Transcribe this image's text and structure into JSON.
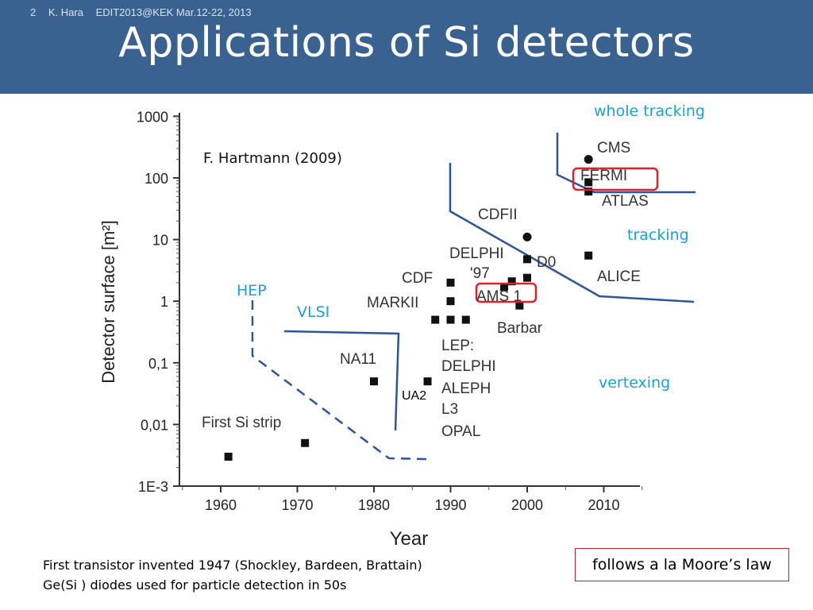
{
  "slide": {
    "number": "2",
    "author": "K. Hara",
    "event": "EDIT2013@KEK Mar.12-22, 2013",
    "title": "Applications of Si detectors"
  },
  "notes": {
    "line1": "First transistor invented 1947 (Shockley, Bardeen, Brattain)",
    "line2": "Ge(Si ) diodes used for particle detection in 50s",
    "moore": "follows a la Moore’s law"
  },
  "colors": {
    "header": "#3a6291",
    "annotation": "#1aa0d6",
    "curve": "#2f5597",
    "highlight": "#e0202a"
  },
  "chart_data": {
    "type": "scatter",
    "xlabel": "Year",
    "ylabel": "Detector surface [m²]",
    "ylog": true,
    "xlim": [
      1953,
      2015
    ],
    "ylim": [
      0.001,
      1000
    ],
    "xticks": [
      1960,
      1970,
      1980,
      1990,
      2000,
      2010
    ],
    "ytick_values": [
      1000,
      100,
      10,
      1,
      0.1,
      0.01,
      0.001
    ],
    "ytick_labels": [
      "1000",
      "100",
      "10",
      "1",
      "0,1",
      "0,01",
      "1E-3"
    ],
    "citation": "F. Hartmann (2009)",
    "points": [
      {
        "x": 1961,
        "y": 0.003,
        "shape": "square"
      },
      {
        "x": 1971,
        "y": 0.005,
        "shape": "square"
      },
      {
        "x": 1980,
        "y": 0.05,
        "shape": "square"
      },
      {
        "x": 1987,
        "y": 0.05,
        "shape": "square"
      },
      {
        "x": 1988,
        "y": 0.5,
        "shape": "square"
      },
      {
        "x": 1990,
        "y": 2,
        "shape": "square"
      },
      {
        "x": 1990,
        "y": 1,
        "shape": "square"
      },
      {
        "x": 1990,
        "y": 0.5,
        "shape": "square"
      },
      {
        "x": 1992,
        "y": 0.5,
        "shape": "square"
      },
      {
        "x": 1997,
        "y": 1.7,
        "shape": "square"
      },
      {
        "x": 1998,
        "y": 2.1,
        "shape": "square"
      },
      {
        "x": 1999,
        "y": 0.85,
        "shape": "square"
      },
      {
        "x": 2000,
        "y": 2.4,
        "shape": "square"
      },
      {
        "x": 2000,
        "y": 4.8,
        "shape": "square"
      },
      {
        "x": 2000,
        "y": 11,
        "shape": "circle"
      },
      {
        "x": 2008,
        "y": 5.5,
        "shape": "square"
      },
      {
        "x": 2008,
        "y": 60,
        "shape": "square"
      },
      {
        "x": 2008,
        "y": 85,
        "shape": "square"
      },
      {
        "x": 2008,
        "y": 200,
        "shape": "circle"
      }
    ],
    "point_labels": [
      "First Si strip",
      "NA11",
      "UA2",
      "MARKII",
      "CDF",
      "DELPHI",
      "'97",
      "CDFII",
      "D0",
      "AMS 1",
      "Barbar",
      "LEP:",
      "DELPHI",
      "ALEPH",
      "L3",
      "OPAL",
      "CMS",
      "FERMI",
      "ATLAS",
      "ALICE"
    ],
    "annotations": [
      "whole tracking",
      "tracking",
      "vertexing",
      "HEP",
      "VLSI"
    ]
  }
}
